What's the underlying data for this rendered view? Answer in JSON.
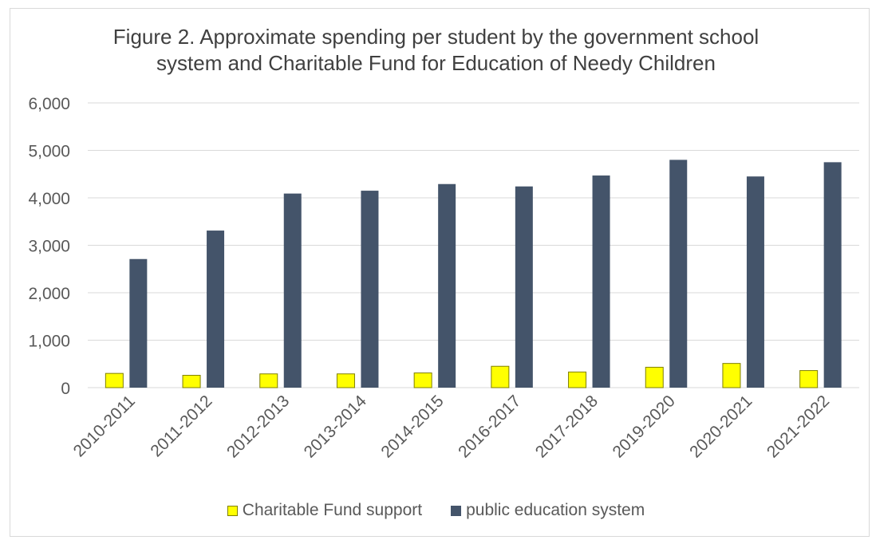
{
  "colors": {
    "charitable": "#FFFF00",
    "charitable_stroke": "#7F7F00",
    "public": "#44546A",
    "grid": "#D9D9D9",
    "axis_text": "#595959",
    "title_text": "#404040"
  },
  "chart_data": {
    "type": "bar",
    "title_line1": "Figure 2. Approximate spending per student by the government school",
    "title_line2": "system and Charitable Fund for Education of Needy Children",
    "xlabel": "",
    "ylabel": "",
    "ylim": [
      0,
      6000
    ],
    "yticks": [
      0,
      1000,
      2000,
      3000,
      4000,
      5000,
      6000
    ],
    "ytick_labels": [
      "0",
      "1,000",
      "2,000",
      "3,000",
      "4,000",
      "5,000",
      "6,000"
    ],
    "grid": true,
    "legend_position": "bottom",
    "categories": [
      "2010-2011",
      "2011-2012",
      "2012-2013",
      "2013-2014",
      "2014-2015",
      "2016-2017",
      "2017-2018",
      "2019-2020",
      "2020-2021",
      "2021-2022"
    ],
    "series": [
      {
        "name": "Charitable Fund support",
        "values": [
          300,
          260,
          290,
          290,
          310,
          450,
          330,
          430,
          510,
          360
        ]
      },
      {
        "name": "public education system",
        "values": [
          2710,
          3310,
          4090,
          4150,
          4290,
          4240,
          4470,
          4800,
          4450,
          4750
        ]
      }
    ]
  }
}
